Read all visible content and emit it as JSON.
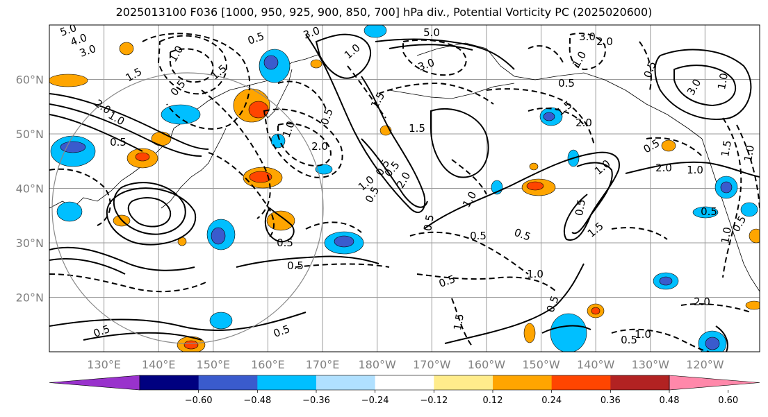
{
  "title": "2025013100 F036 [1000, 950, 925, 900, 850, 700] hPa div., Potential Vorticity PC (2025020600)",
  "map": {
    "projection": "equirectangular",
    "lon_range": [
      120,
      250
    ],
    "lat_range": [
      10,
      70
    ],
    "lat_labels": [
      "20°N",
      "30°N",
      "40°N",
      "50°N",
      "60°N"
    ],
    "lon_labels": [
      "130°E",
      "140°E",
      "150°E",
      "160°E",
      "170°E",
      "180°W",
      "170°W",
      "160°W",
      "150°W",
      "140°W",
      "130°W",
      "120°W"
    ]
  },
  "colorbar": {
    "colors": [
      "#9932cc",
      "#000080",
      "#3a5bcd",
      "#00bfff",
      "#b0e0ff",
      "#ffffff",
      "#ffec8b",
      "#ffa500",
      "#ff4500",
      "#b22222",
      "#ff88aa"
    ],
    "tick_labels": [
      "−0.60",
      "−0.48",
      "−0.36",
      "−0.24",
      "−0.12",
      "0.12",
      "0.24",
      "0.36",
      "0.48",
      "0.60"
    ]
  },
  "contour_labels": [
    "5.0",
    "4.0",
    "3.0",
    "0.5",
    "1.5",
    "2.0",
    "1.0",
    "0.5",
    "3.0",
    "1.0",
    "1.5",
    "0.5",
    "5.0",
    "1.0",
    "3.0",
    "1.5",
    "2.0",
    "0.5",
    "3.0",
    "2.0",
    "1.0",
    "0.5",
    "3.0",
    "1.0",
    "0.5",
    "2.0",
    "1.5",
    "0.5",
    "1.0",
    "2.0",
    "0.5",
    "1.5",
    "1.0",
    "0.5",
    "1.0",
    "0.5",
    "2.0",
    "1.0",
    "0.5",
    "1.5",
    "0.5",
    "1.0",
    "0.5",
    "0.5",
    "0.5",
    "1.0",
    "0.5",
    "1.0",
    "1.5",
    "0.5",
    "0.5",
    "0.5",
    "1.0",
    "2.0",
    "1.0",
    "1.5",
    "0.5",
    "0.5",
    "0.5",
    "0.5"
  ]
}
